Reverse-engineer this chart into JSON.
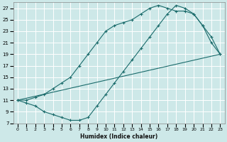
{
  "xlabel": "Humidex (Indice chaleur)",
  "xlim": [
    -0.5,
    23.5
  ],
  "ylim": [
    7,
    28
  ],
  "xticks": [
    0,
    1,
    2,
    3,
    4,
    5,
    6,
    7,
    8,
    9,
    10,
    11,
    12,
    13,
    14,
    15,
    16,
    17,
    18,
    19,
    20,
    21,
    22,
    23
  ],
  "yticks": [
    7,
    9,
    11,
    13,
    15,
    17,
    19,
    21,
    23,
    25,
    27
  ],
  "bg_color": "#cde8e8",
  "grid_color": "#b0d4d4",
  "line_color": "#1a6b6b",
  "line1_x": [
    0,
    1,
    2,
    3,
    4,
    5,
    6,
    7,
    8,
    9,
    10,
    11,
    12,
    13,
    14,
    15,
    16,
    17,
    18,
    19,
    20,
    21,
    22,
    23
  ],
  "line1_y": [
    11,
    10.5,
    10,
    9,
    8.5,
    8,
    7.5,
    7.5,
    8,
    10,
    12,
    14,
    16,
    18,
    20,
    22,
    24,
    26,
    27.5,
    27,
    26,
    24,
    21,
    19
  ],
  "line2_x": [
    0,
    1,
    2,
    3,
    4,
    5,
    6,
    7,
    8,
    9,
    10,
    11,
    12,
    13,
    14,
    15,
    16,
    17,
    18,
    19,
    20,
    21,
    22,
    23
  ],
  "line2_y": [
    11,
    11,
    11.5,
    12,
    13,
    14,
    15,
    17,
    19,
    21,
    23,
    24,
    24.5,
    25,
    26,
    27,
    27.5,
    27,
    26.5,
    26.5,
    26,
    24,
    22,
    19
  ],
  "line3_x": [
    0,
    23
  ],
  "line3_y": [
    11,
    19
  ]
}
